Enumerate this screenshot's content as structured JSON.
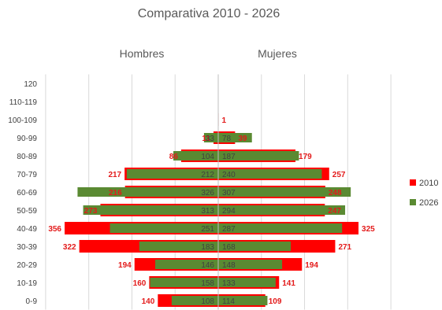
{
  "chart_data": {
    "type": "bar",
    "title": "Comparativa 2010 - 2026",
    "left_label": "Hombres",
    "right_label": "Mujeres",
    "categories": [
      "120",
      "110-119",
      "100-109",
      "90-99",
      "80-89",
      "70-79",
      "60-69",
      "50-59",
      "40-49",
      "30-39",
      "20-29",
      "10-19",
      "0-9"
    ],
    "series": [
      {
        "name": "2010",
        "color": "#ff0000",
        "hombres": [
          null,
          null,
          null,
          11,
          86,
          217,
          216,
          273,
          356,
          322,
          194,
          160,
          140
        ],
        "mujeres": [
          null,
          null,
          1,
          39,
          179,
          257,
          248,
          247,
          325,
          271,
          194,
          141,
          109
        ]
      },
      {
        "name": "2026",
        "color": "#5a8a32",
        "hombres": [
          null,
          null,
          null,
          33,
          104,
          212,
          326,
          313,
          251,
          183,
          146,
          158,
          108
        ],
        "mujeres": [
          null,
          null,
          null,
          78,
          187,
          240,
          307,
          294,
          287,
          168,
          148,
          133,
          114
        ]
      }
    ],
    "xlim": [
      -400,
      400
    ],
    "grid": true,
    "legend_position": "right"
  }
}
